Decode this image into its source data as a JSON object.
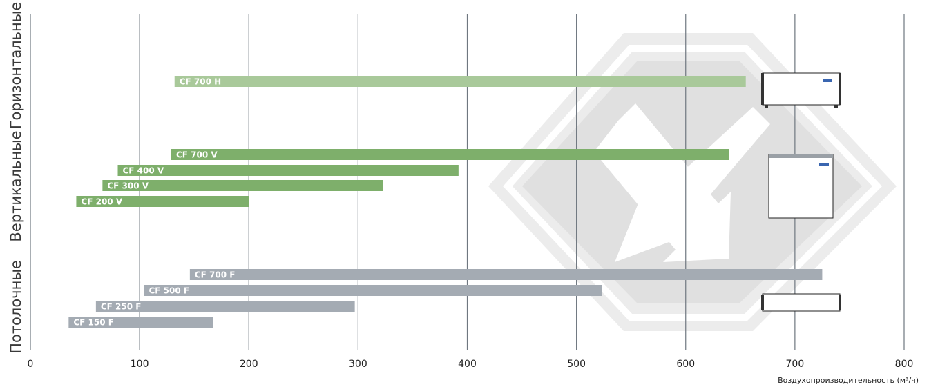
{
  "chart_data": {
    "type": "bar",
    "orientation": "horizontal",
    "xlabel": "Воздухопроизводительность (м³/ч)",
    "xlim": [
      0,
      800
    ],
    "xticks": [
      0,
      100,
      200,
      300,
      400,
      500,
      600,
      700,
      800
    ],
    "grid": true,
    "groups": [
      {
        "name": "Горизонтальные",
        "color": "#a9c99a",
        "bars": [
          {
            "label": "CF 700 H",
            "min": 132,
            "max": 655
          }
        ]
      },
      {
        "name": "Вертикальные",
        "color": "#7eaf6b",
        "bars": [
          {
            "label": "CF 700 V",
            "min": 129,
            "max": 640
          },
          {
            "label": "CF 400 V",
            "min": 80,
            "max": 392
          },
          {
            "label": "CF 300 V",
            "min": 66,
            "max": 323
          },
          {
            "label": "CF 200 V",
            "min": 42,
            "max": 200
          }
        ]
      },
      {
        "name": "Потолочные",
        "color": "#a4abb3",
        "bars": [
          {
            "label": "CF 700 F",
            "min": 146,
            "max": 725
          },
          {
            "label": "CF 500 F",
            "min": 104,
            "max": 523
          },
          {
            "label": "CF 250 F",
            "min": 60,
            "max": 297
          },
          {
            "label": "CF 150 F",
            "min": 35,
            "max": 167
          }
        ]
      }
    ]
  }
}
